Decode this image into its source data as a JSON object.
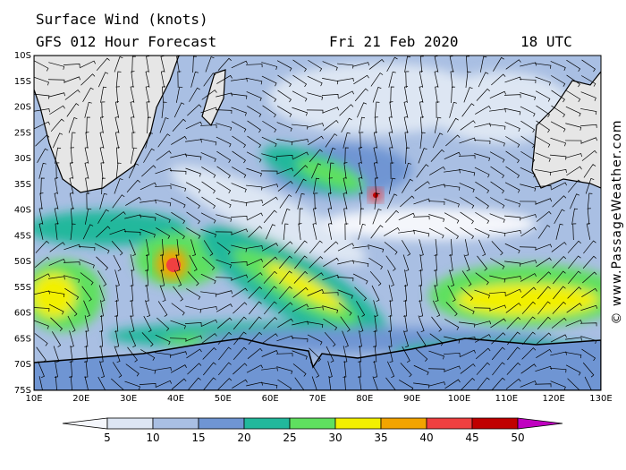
{
  "header": {
    "title": "Surface Wind (knots)",
    "subtitle": "GFS 012 Hour Forecast",
    "date": "Fri 21 Feb 2020",
    "time": "18 UTC"
  },
  "map": {
    "lat_labels": [
      "10S",
      "15S",
      "20S",
      "25S",
      "30S",
      "35S",
      "40S",
      "45S",
      "50S",
      "55S",
      "60S",
      "65S",
      "70S",
      "75S"
    ],
    "lon_labels": [
      "10E",
      "20E",
      "30E",
      "40E",
      "50E",
      "60E",
      "70E",
      "80E",
      "90E",
      "100E",
      "110E",
      "120E",
      "130E"
    ]
  },
  "colorbar": {
    "labels": [
      "5",
      "10",
      "15",
      "20",
      "25",
      "30",
      "35",
      "40",
      "45",
      "50"
    ],
    "colors": [
      "#f4f6fb",
      "#dde6f3",
      "#a9bfe3",
      "#6f95d3",
      "#22b89c",
      "#5fe05f",
      "#f2f000",
      "#f2a400",
      "#f04040",
      "#c00000",
      "#c000c0"
    ]
  },
  "credit": "© www.PassageWeather.com"
}
